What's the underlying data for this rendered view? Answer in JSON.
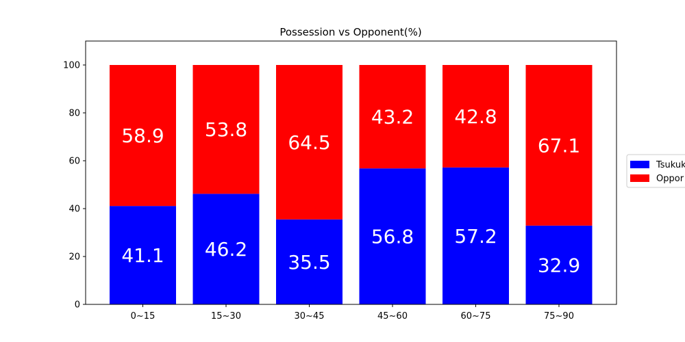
{
  "chart_data": {
    "type": "bar",
    "stacked": true,
    "title": "Possession vs Opponent(%)",
    "categories": [
      "0~15",
      "15~30",
      "30~45",
      "45~60",
      "60~75",
      "75~90"
    ],
    "series": [
      {
        "name": "Tsukuk",
        "color": "#0000ff",
        "values": [
          41.1,
          46.2,
          35.5,
          56.8,
          57.2,
          32.9
        ]
      },
      {
        "name": "Oppor",
        "color": "#ff0000",
        "values": [
          58.9,
          53.8,
          64.5,
          43.2,
          42.8,
          67.1
        ]
      }
    ],
    "ylim": [
      0,
      110
    ],
    "yticks": [
      0,
      20,
      40,
      60,
      80,
      100
    ],
    "grid": false,
    "legend_placement": "right (clipped at edge)"
  }
}
